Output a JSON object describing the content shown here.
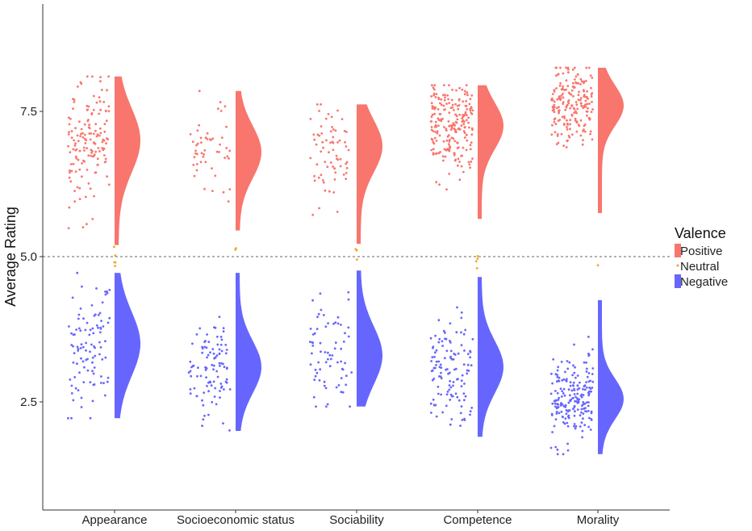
{
  "chart_data": {
    "type": "raincloud",
    "ylabel": "Average Rating",
    "xlabel": "",
    "ylim": [
      0.9,
      9.5
    ],
    "y_ticks": [
      2.5,
      5.0,
      7.5
    ],
    "y_tick_labels": [
      "2.5",
      "5.0",
      "7.5"
    ],
    "reference_line": 5.0,
    "categories": [
      "Appearance",
      "Socioeconomic status",
      "Sociability",
      "Competence",
      "Morality"
    ],
    "legend": {
      "title": "Valence",
      "placement": "right",
      "entries": [
        "Positive",
        "Neutral",
        "Negative"
      ]
    },
    "colors": {
      "Positive": "#f8766d",
      "Neutral": "#f5a623",
      "Negative": "#6666ff"
    },
    "series": [
      {
        "name": "Positive",
        "clouds": [
          {
            "category": "Appearance",
            "n": 150,
            "min": 5.2,
            "max": 8.1,
            "mode": 7.0,
            "spread": 0.55
          },
          {
            "category": "Socioeconomic status",
            "n": 50,
            "min": 5.45,
            "max": 7.85,
            "mode": 6.8,
            "spread": 0.45
          },
          {
            "category": "Sociability",
            "n": 70,
            "min": 5.22,
            "max": 7.62,
            "mode": 6.9,
            "spread": 0.45
          },
          {
            "category": "Competence",
            "n": 220,
            "min": 5.65,
            "max": 7.95,
            "mode": 7.25,
            "spread": 0.4
          },
          {
            "category": "Morality",
            "n": 200,
            "min": 5.75,
            "max": 8.25,
            "mode": 7.6,
            "spread": 0.35
          }
        ]
      },
      {
        "name": "Neutral",
        "clouds": [
          {
            "category": "Appearance",
            "n": 5,
            "min": 4.8,
            "max": 5.2,
            "mode": 5.0,
            "spread": 0.1
          },
          {
            "category": "Socioeconomic status",
            "n": 2,
            "min": 5.05,
            "max": 5.15,
            "mode": 5.1,
            "spread": 0.05
          },
          {
            "category": "Sociability",
            "n": 3,
            "min": 4.95,
            "max": 5.2,
            "mode": 5.05,
            "spread": 0.1
          },
          {
            "category": "Competence",
            "n": 4,
            "min": 4.8,
            "max": 5.2,
            "mode": 5.0,
            "spread": 0.1
          },
          {
            "category": "Morality",
            "n": 1,
            "min": 4.85,
            "max": 4.85,
            "mode": 4.85,
            "spread": 0.05
          }
        ]
      },
      {
        "name": "Negative",
        "clouds": [
          {
            "category": "Appearance",
            "n": 100,
            "min": 2.22,
            "max": 4.72,
            "mode": 3.5,
            "spread": 0.55
          },
          {
            "category": "Socioeconomic status",
            "n": 100,
            "min": 2.0,
            "max": 4.72,
            "mode": 3.1,
            "spread": 0.45
          },
          {
            "category": "Sociability",
            "n": 70,
            "min": 2.42,
            "max": 4.76,
            "mode": 3.3,
            "spread": 0.5
          },
          {
            "category": "Competence",
            "n": 120,
            "min": 1.9,
            "max": 4.65,
            "mode": 3.1,
            "spread": 0.45
          },
          {
            "category": "Morality",
            "n": 200,
            "min": 1.6,
            "max": 4.25,
            "mode": 2.55,
            "spread": 0.35
          }
        ]
      }
    ]
  }
}
